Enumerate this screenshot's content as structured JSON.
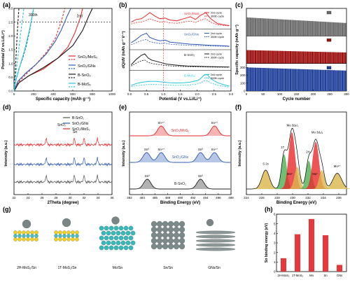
{
  "figure": {
    "panel_labels": [
      "(a)",
      "(b)",
      "(c)",
      "(d)",
      "(e)",
      "(f)",
      "(g)",
      "(h)"
    ]
  },
  "chart_data": [
    {
      "panel": "a",
      "type": "line",
      "xlabel": "Specific capacity (mAh g⁻¹)",
      "ylabel": "Potential (V vs.Li/Li⁺)",
      "xlim": [
        0,
        1000
      ],
      "ylim": [
        0,
        3.0
      ],
      "xticks": [
        0,
        200,
        400,
        600,
        800,
        1000
      ],
      "yticks": [
        "0.0",
        "0.5",
        "1.0",
        "1.5",
        "2.0",
        "2.5",
        "3.0"
      ],
      "reference_line_y": 2.5,
      "annotations": [
        "300th",
        "2nd"
      ],
      "legend": [
        "SnO₂/MoS₂",
        "SnO₂/GNs",
        "B-SnO₂",
        "B-MoS₂"
      ],
      "colors": [
        "#e8292b",
        "#2f5bb4",
        "#1a1a1a",
        "#28c6d9"
      ],
      "series": [
        {
          "name": "SnO₂/MoS₂",
          "cycle": "2nd",
          "style": "solid",
          "x": [
            0,
            50,
            150,
            300,
            450,
            550,
            620,
            680,
            700
          ],
          "y": [
            0.0,
            0.3,
            0.55,
            0.8,
            1.2,
            1.6,
            2.1,
            2.7,
            3.0
          ]
        },
        {
          "name": "SnO₂/MoS₂",
          "cycle": "300th",
          "style": "dashed",
          "x": [
            0,
            40,
            120,
            220,
            330,
            420,
            480,
            520
          ],
          "y": [
            0.0,
            0.3,
            0.6,
            0.95,
            1.4,
            1.9,
            2.5,
            3.0
          ]
        },
        {
          "name": "SnO₂/GNs",
          "cycle": "2nd",
          "style": "solid",
          "x": [
            0,
            40,
            120,
            220,
            330,
            420,
            480,
            540,
            580
          ],
          "y": [
            0.0,
            0.35,
            0.65,
            0.95,
            1.35,
            1.8,
            2.2,
            2.7,
            3.0
          ]
        },
        {
          "name": "SnO₂/GNs",
          "cycle": "300th",
          "style": "dashed",
          "x": [
            0,
            20,
            50,
            90,
            130,
            160,
            180,
            200
          ],
          "y": [
            0.0,
            0.4,
            0.8,
            1.2,
            1.7,
            2.2,
            2.6,
            3.0
          ]
        },
        {
          "name": "B-SnO₂",
          "cycle": "2nd",
          "style": "solid",
          "x": [
            0,
            50,
            150,
            300,
            450,
            600,
            700,
            760,
            800
          ],
          "y": [
            0.0,
            0.3,
            0.55,
            0.85,
            1.2,
            1.65,
            2.2,
            2.7,
            3.0
          ]
        },
        {
          "name": "B-SnO₂",
          "cycle": "300th",
          "style": "dashed",
          "x": [
            0,
            10,
            20,
            30,
            40,
            50
          ],
          "y": [
            0.0,
            0.5,
            1.2,
            1.9,
            2.5,
            3.0
          ]
        },
        {
          "name": "B-MoS₂",
          "cycle": "2nd",
          "style": "solid",
          "x": [
            0,
            20,
            60,
            110,
            150,
            180,
            200
          ],
          "y": [
            0.0,
            0.4,
            0.9,
            1.5,
            2.1,
            2.6,
            3.0
          ]
        },
        {
          "name": "B-MoS₂",
          "cycle": "300th",
          "style": "dashed",
          "x": [
            0,
            15,
            35,
            55,
            75,
            90,
            100
          ],
          "y": [
            0.0,
            0.5,
            1.1,
            1.7,
            2.3,
            2.7,
            3.0
          ]
        }
      ]
    },
    {
      "panel": "b",
      "type": "line",
      "xlabel": "Potential (V vs.Li/Li⁺)",
      "ylabel": "dQ/dV (mAh g⁻¹ V⁻¹)",
      "xlim": [
        0.0,
        3.0
      ],
      "xticks": [
        "0.0",
        "0.5",
        "1.0",
        "1.5",
        "2.0",
        "2.5",
        "3.0"
      ],
      "reference_line_x": 1.0,
      "subpanels": [
        {
          "label": "SnO₂/MoS₂",
          "color": "#e8292b",
          "legend": [
            "2nd cycle",
            "300th cycle"
          ],
          "x": [
            0.05,
            0.2,
            0.35,
            0.5,
            0.6,
            0.75,
            0.9,
            1.05,
            1.2,
            1.4,
            1.6,
            1.8,
            1.95,
            2.1,
            2.25,
            2.4,
            2.6,
            2.8,
            2.95
          ],
          "y": [
            0.3,
            0.5,
            0.55,
            0.8,
            1.0,
            0.75,
            0.55,
            0.6,
            0.45,
            0.4,
            0.55,
            0.7,
            0.5,
            0.8,
            1.0,
            0.55,
            0.2,
            0.1,
            0.05
          ]
        },
        {
          "label": "SnO₂/GNs",
          "color": "#2f5bb4",
          "legend": [
            "2nd cycle",
            "300th cycle"
          ],
          "x": [
            0.05,
            0.2,
            0.35,
            0.5,
            0.6,
            0.75,
            0.9,
            1.05,
            1.2,
            1.4,
            1.6,
            1.8,
            2.0,
            2.2,
            2.4,
            2.6,
            2.8,
            2.95
          ],
          "y": [
            0.3,
            0.55,
            0.85,
            1.0,
            0.7,
            0.55,
            0.45,
            0.5,
            0.35,
            0.3,
            0.25,
            0.2,
            0.18,
            0.15,
            0.12,
            0.1,
            0.08,
            0.05
          ]
        },
        {
          "label": "B-SnO₂",
          "color": "#1a1a1a",
          "legend": [
            "2nd cycle",
            "300th cycle"
          ],
          "x": [
            0.05,
            0.2,
            0.35,
            0.45,
            0.55,
            0.65,
            0.8,
            0.95,
            1.1,
            1.3,
            1.5,
            1.7,
            1.9,
            2.1,
            2.3,
            2.5,
            2.7,
            2.95
          ],
          "y": [
            0.2,
            0.6,
            0.9,
            1.0,
            0.7,
            0.55,
            0.45,
            0.35,
            0.25,
            0.2,
            0.15,
            0.12,
            0.1,
            0.08,
            0.07,
            0.06,
            0.05,
            0.04
          ]
        },
        {
          "label": "B-MoS₂",
          "color": "#28c6d9",
          "legend": [
            "2nd cycle",
            "300th cycle"
          ],
          "x": [
            0.05,
            0.2,
            0.4,
            0.6,
            0.8,
            1.0,
            1.2,
            1.4,
            1.6,
            1.8,
            2.0,
            2.1,
            2.2,
            2.3,
            2.4,
            2.6,
            2.8,
            2.95
          ],
          "y": [
            0.2,
            0.35,
            0.45,
            0.5,
            0.5,
            0.45,
            0.4,
            0.38,
            0.4,
            0.45,
            0.55,
            0.7,
            0.95,
            1.0,
            0.7,
            0.4,
            0.25,
            0.15
          ]
        }
      ]
    },
    {
      "panel": "c",
      "type": "bar",
      "xlabel": "Cycle number",
      "ylabel": "Specific capacity (mAh g⁻¹)",
      "xlim": [
        0,
        300
      ],
      "xticks": [
        0,
        50,
        100,
        150,
        200,
        250,
        300
      ],
      "yticks": [
        0,
        100,
        200,
        300,
        400,
        500,
        600,
        700
      ],
      "ylim": [
        0,
        700
      ],
      "series": [
        {
          "name": "2.0~3.0 V",
          "color": "#6b6b6b",
          "start": 235,
          "end": 165
        },
        {
          "name": "1.0~2.0 V",
          "color": "#9c1010",
          "start": 170,
          "end": 140
        },
        {
          "name": "0.01~1.0 V",
          "color": "#1f3f99",
          "start": 300,
          "end": 260
        }
      ]
    },
    {
      "panel": "d",
      "type": "line",
      "xlabel": "2Theta (degree)",
      "ylabel": "Intensity (a.u.)",
      "xlim": [
        22,
        36
      ],
      "xticks": [
        22,
        24,
        26,
        28,
        30,
        32,
        34,
        36
      ],
      "annotations": [
        "SnO₂",
        "Sn"
      ],
      "legend": [
        "B-SnO₂",
        "SnO₂/GNs",
        "SnO₂/MoS₂"
      ],
      "colors": [
        "#555555",
        "#2f5bb4",
        "#e8292b"
      ],
      "peaks": [
        26.6,
        30.6,
        32.0,
        33.9
      ],
      "offsets": [
        0.0,
        0.9,
        1.9
      ]
    },
    {
      "panel": "e",
      "type": "line",
      "xlabel": "Binding Energy (eV)",
      "ylabel": "Intensity (a.u.)",
      "xlim": [
        482,
        498
      ],
      "xticks": [
        482,
        484,
        486,
        488,
        490,
        492,
        494,
        496,
        498
      ],
      "traces": [
        {
          "label": "SnO₂/MoS₂",
          "color": "#e8292b",
          "peaks": [
            {
              "x": 487.0,
              "label": "Sn⁴⁺"
            },
            {
              "x": 495.4,
              "label": "Sn⁴⁺"
            }
          ]
        },
        {
          "label": "SnO₂/GNs",
          "color": "#2f5bb4",
          "peaks": [
            {
              "x": 484.7,
              "label": "Sn⁰"
            },
            {
              "x": 487.0,
              "label": "Sn⁴⁺"
            },
            {
              "x": 493.2,
              "label": "Sn⁰"
            },
            {
              "x": 495.4,
              "label": "Sn⁴⁺"
            }
          ]
        },
        {
          "label": "B-SnO₂",
          "color": "#222222",
          "peaks": [
            {
              "x": 484.8,
              "label": "Sn⁰"
            },
            {
              "x": 493.2,
              "label": "Sn⁰"
            }
          ]
        }
      ]
    },
    {
      "panel": "f",
      "type": "line",
      "xlabel": "Binding Energy (eV)",
      "ylabel": "Intensity (a.u.)",
      "xlim": [
        224,
        237
      ],
      "xticks": [
        224,
        226,
        228,
        230,
        232,
        234,
        236
      ],
      "labels": [
        "S 2s",
        "1T",
        "Mo 3d₅/₂",
        "2H",
        "Mo 3d₃/₂",
        "Mo²",
        "Mo³",
        "Mo⁶⁺"
      ],
      "components": [
        {
          "x": 226.5,
          "w": 0.7,
          "h": 0.3,
          "color": "#d9b64a"
        },
        {
          "x": 228.9,
          "w": 0.5,
          "h": 0.55,
          "color": "#4caf50"
        },
        {
          "x": 229.9,
          "w": 0.6,
          "h": 0.9,
          "color": "#e8292b"
        },
        {
          "x": 230.6,
          "w": 0.5,
          "h": 0.35,
          "color": "#d9b64a"
        },
        {
          "x": 232.1,
          "w": 0.5,
          "h": 0.45,
          "color": "#4caf50"
        },
        {
          "x": 233.0,
          "w": 0.6,
          "h": 0.75,
          "color": "#e8292b"
        },
        {
          "x": 233.8,
          "w": 0.5,
          "h": 0.3,
          "color": "#d9b64a"
        },
        {
          "x": 235.8,
          "w": 0.8,
          "h": 0.25,
          "color": "#d9b64a"
        }
      ]
    },
    {
      "panel": "h",
      "type": "bar",
      "ylabel": "Sn binding energy (eV)",
      "categories": [
        "2H-MoS₂",
        "1T-MoS₂",
        "Mo",
        "Sn",
        "GNs"
      ],
      "values": [
        1.4,
        3.9,
        5.5,
        3.8,
        0.7
      ],
      "ylim": [
        0,
        6
      ],
      "yticks": [
        0,
        1,
        2,
        3,
        4,
        5,
        6
      ],
      "color": "#e8373a"
    }
  ],
  "panel_g": {
    "structures": [
      "2H-MoS₂/Sn",
      "1T-MoS₂/Sn",
      "Mo/Sn",
      "Sn/Sn",
      "GNs/Sn"
    ]
  }
}
